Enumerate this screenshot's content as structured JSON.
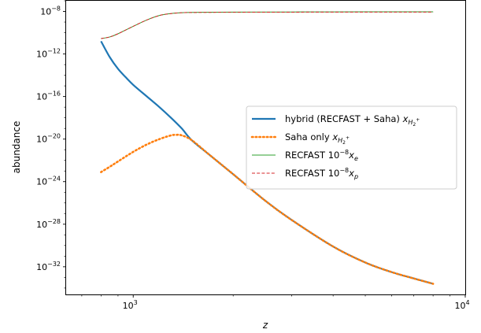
{
  "chart_data": {
    "type": "line",
    "title": "",
    "xlabel": "z",
    "ylabel": "abundance",
    "x_scale": "log",
    "y_scale": "log",
    "xlim": [
      628,
      10000
    ],
    "ylim_exp": [
      -34.6,
      -7.0
    ],
    "x_ticks": [
      {
        "value": 1000,
        "base": "10",
        "exp": "3"
      },
      {
        "value": 10000,
        "base": "10",
        "exp": "4"
      }
    ],
    "y_ticks": [
      {
        "exp": -8,
        "base": "10",
        "label": "−8"
      },
      {
        "exp": -12,
        "base": "10",
        "label": "−12"
      },
      {
        "exp": -16,
        "base": "10",
        "label": "−16"
      },
      {
        "exp": -20,
        "base": "10",
        "label": "−20"
      },
      {
        "exp": -24,
        "base": "10",
        "label": "−24"
      },
      {
        "exp": -28,
        "base": "10",
        "label": "−28"
      },
      {
        "exp": -32,
        "base": "10",
        "label": "−32"
      }
    ],
    "grid": false,
    "legend_position": "right",
    "series": [
      {
        "name": "hybrid (RECFAST + Saha) x_{H2+}",
        "color": "#1f77b4",
        "style": "solid",
        "x": [
          800,
          850,
          900,
          950,
          1000,
          1100,
          1200,
          1300,
          1400,
          1500,
          1700,
          2000,
          2500,
          3000,
          4000,
          5000,
          6000,
          7000,
          8000
        ],
        "log10_y": [
          -10.8,
          -12.3,
          -13.4,
          -14.2,
          -14.9,
          -16.0,
          -17.0,
          -18.0,
          -19.0,
          -20.1,
          -21.5,
          -23.3,
          -25.8,
          -27.6,
          -30.1,
          -31.6,
          -32.5,
          -33.1,
          -33.6
        ]
      },
      {
        "name": "Saha only x_{H2+}",
        "color": "#ff7f0e",
        "style": "dotted",
        "x": [
          800,
          850,
          900,
          1000,
          1100,
          1200,
          1300,
          1350,
          1400,
          1500,
          1700,
          2000,
          2500,
          3000,
          4000,
          5000,
          6000,
          7000,
          8000
        ],
        "log10_y": [
          -23.1,
          -22.6,
          -22.1,
          -21.2,
          -20.5,
          -20.0,
          -19.65,
          -19.6,
          -19.65,
          -20.1,
          -21.5,
          -23.3,
          -25.8,
          -27.6,
          -30.1,
          -31.6,
          -32.5,
          -33.1,
          -33.6
        ]
      },
      {
        "name": "RECFAST 10^{-8} x_e",
        "color": "#2ca02c",
        "style": "solid",
        "x": [
          800,
          850,
          900,
          1000,
          1100,
          1200,
          1300,
          1400,
          1500,
          2000,
          3000,
          5000,
          8000
        ],
        "log10_y": [
          -10.55,
          -10.4,
          -10.1,
          -9.4,
          -8.8,
          -8.38,
          -8.2,
          -8.12,
          -8.09,
          -8.06,
          -8.05,
          -8.04,
          -8.04
        ]
      },
      {
        "name": "RECFAST 10^{-8} x_p",
        "color": "#d62728",
        "style": "dashed",
        "x": [
          800,
          850,
          900,
          1000,
          1100,
          1200,
          1300,
          1400,
          1500,
          2000,
          3000,
          5000,
          8000
        ],
        "log10_y": [
          -10.55,
          -10.4,
          -10.1,
          -9.4,
          -8.8,
          -8.38,
          -8.2,
          -8.12,
          -8.1,
          -8.08,
          -8.07,
          -8.06,
          -8.06
        ]
      }
    ],
    "legend": [
      {
        "text": "hybrid (RECFAST + Saha) ",
        "var": "x",
        "sub": "H",
        "subsub": "2",
        "sup": "+",
        "pre": ""
      },
      {
        "text": "Saha only ",
        "var": "x",
        "sub": "H",
        "subsub": "2",
        "sup": "+",
        "pre": ""
      },
      {
        "text": "RECFAST ",
        "pre_base": "10",
        "pre_exp": "−8",
        "var": "x",
        "sub": "e"
      },
      {
        "text": "RECFAST ",
        "pre_base": "10",
        "pre_exp": "−8",
        "var": "x",
        "sub": "p"
      }
    ]
  }
}
